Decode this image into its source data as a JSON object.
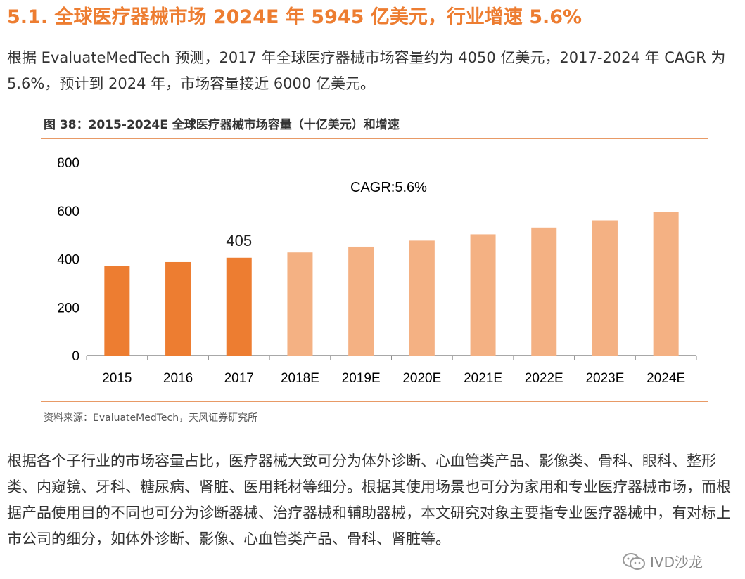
{
  "heading": "5.1. 全球医疗器械市场 2024E 年 5945 亿美元，行业增速 5.6%",
  "intro": "根据 EvaluateMedTech 预测，2017 年全球医疗器械市场容量约为 4050 亿美元，2017-2024 年 CAGR 为 5.6%，预计到 2024 年，市场容量接近 6000 亿美元。",
  "figure_caption": "图 38：2015-2024E 全球医疗器械市场容量（十亿美元）和增速",
  "source": "资料来源：EvaluateMedTech，天风证券研究所",
  "body": "根据各个子行业的市场容量占比，医疗器械大致可分为体外诊断、心血管类产品、影像类、骨科、眼科、整形类、内窥镜、牙科、糖尿病、肾脏、医用耗材等细分。根据其使用场景也可分为家用和专业医疗器械市场，而根据产品使用目的不同也可分为诊断器械、治疗器械和辅助器械，本文研究对象主要指专业医疗器械中，有对标上市公司的细分，如体外诊断、影像、心血管类产品、骨科、肾脏等。",
  "watermark": "IVD沙龙",
  "chart_data": {
    "type": "bar",
    "title": "",
    "xlabel": "",
    "ylabel": "",
    "categories": [
      "2015",
      "2016",
      "2017",
      "2018E",
      "2019E",
      "2020E",
      "2021E",
      "2022E",
      "2023E",
      "2024E"
    ],
    "values": [
      371,
      387,
      405,
      427,
      451,
      476,
      502,
      530,
      560,
      594
    ],
    "ylim": [
      0,
      800
    ],
    "yticks": [
      0,
      200,
      400,
      600,
      800
    ],
    "grid": false,
    "legend": "none",
    "annotation": "CAGR:5.6%",
    "data_labels": [
      {
        "index": 2,
        "text": "405"
      }
    ],
    "colors": {
      "actual": "#ED7D31",
      "forecast": "#F4B183"
    },
    "actual_count": 3
  }
}
